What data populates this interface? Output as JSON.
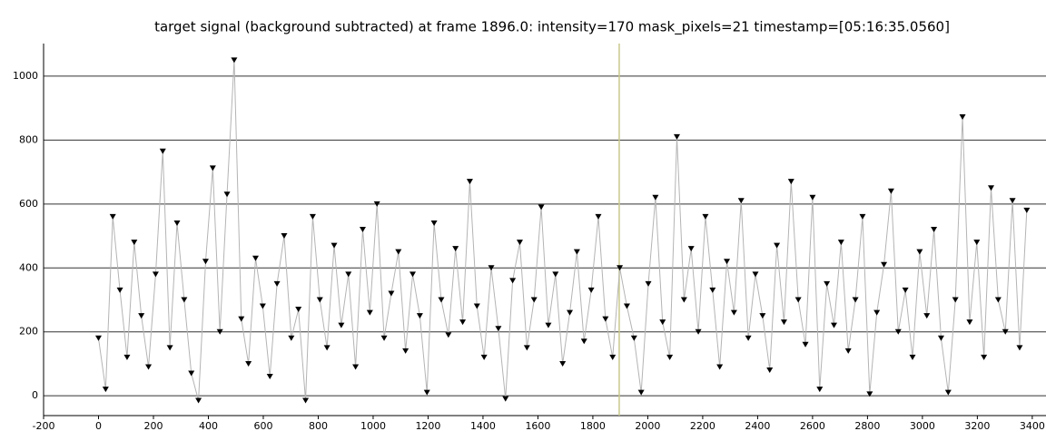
{
  "chart_data": {
    "type": "scatter-line",
    "title": "target signal (background subtracted) at frame 1896.0: intensity=170 mask_pixels=21 timestamp=[05:16:35.0560]",
    "x": [
      0,
      26,
      52,
      78,
      104,
      130,
      156,
      182,
      208,
      234,
      260,
      286,
      312,
      338,
      364,
      390,
      416,
      442,
      468,
      494,
      520,
      546,
      572,
      598,
      624,
      650,
      676,
      702,
      728,
      754,
      780,
      806,
      832,
      858,
      884,
      910,
      936,
      962,
      988,
      1014,
      1040,
      1066,
      1092,
      1118,
      1144,
      1170,
      1196,
      1222,
      1248,
      1274,
      1300,
      1326,
      1352,
      1378,
      1404,
      1430,
      1456,
      1482,
      1508,
      1534,
      1560,
      1586,
      1612,
      1638,
      1664,
      1690,
      1716,
      1742,
      1768,
      1794,
      1820,
      1846,
      1872,
      1898,
      1924,
      1950,
      1976,
      2002,
      2028,
      2054,
      2080,
      2106,
      2132,
      2158,
      2184,
      2210,
      2236,
      2262,
      2288,
      2314,
      2340,
      2366,
      2392,
      2418,
      2444,
      2470,
      2496,
      2522,
      2548,
      2574,
      2600,
      2626,
      2652,
      2678,
      2704,
      2730,
      2756,
      2782,
      2808,
      2834,
      2860,
      2886,
      2912,
      2938,
      2964,
      2990,
      3016,
      3042,
      3068,
      3094,
      3120,
      3146,
      3172,
      3198,
      3224,
      3250,
      3276,
      3302,
      3328,
      3354,
      3380
    ],
    "values": [
      180,
      20,
      560,
      330,
      120,
      480,
      250,
      90,
      380,
      765,
      150,
      540,
      300,
      70,
      -15,
      420,
      712,
      200,
      630,
      1050,
      240,
      100,
      430,
      280,
      60,
      350,
      500,
      180,
      270,
      -15,
      560,
      300,
      150,
      470,
      220,
      380,
      90,
      520,
      260,
      600,
      180,
      320,
      450,
      140,
      380,
      250,
      10,
      540,
      300,
      190,
      460,
      230,
      670,
      280,
      120,
      400,
      210,
      -10,
      360,
      480,
      150,
      300,
      590,
      220,
      380,
      100,
      260,
      450,
      170,
      330,
      560,
      240,
      120,
      400,
      280,
      180,
      10,
      350,
      620,
      230,
      120,
      810,
      300,
      460,
      200,
      560,
      330,
      90,
      420,
      260,
      610,
      180,
      380,
      250,
      80,
      470,
      230,
      670,
      300,
      160,
      620,
      20,
      350,
      220,
      480,
      140,
      300,
      560,
      5,
      260,
      410,
      640,
      200,
      330,
      120,
      450,
      250,
      520,
      180,
      10,
      300,
      872,
      230,
      480,
      120,
      650,
      300,
      200,
      610,
      150,
      580
    ],
    "color": "#000000",
    "line_color": "#b4b4b4",
    "cursor_x": 1896,
    "cursor_color": "#c8c88c",
    "xlim": [
      -200,
      3450
    ],
    "ylim": [
      -62,
      1102
    ],
    "xticks": [
      -200,
      0,
      200,
      400,
      600,
      800,
      1000,
      1200,
      1400,
      1600,
      1800,
      2000,
      2200,
      2400,
      2600,
      2800,
      3000,
      3200,
      3400
    ],
    "yticks": [
      0,
      200,
      400,
      600,
      800,
      1000
    ],
    "grid": true
  }
}
